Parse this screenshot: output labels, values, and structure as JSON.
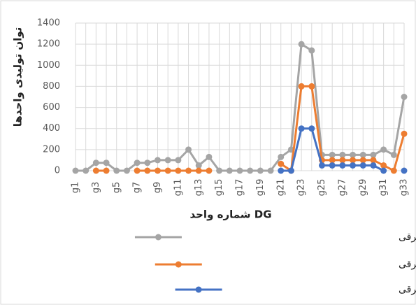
{
  "chart_data": {
    "type": "line",
    "x_label": "شماره واحد DG",
    "y_label": "توان تولیدی واحدها",
    "categories": [
      "g1",
      null,
      "g3",
      null,
      "g5",
      null,
      "g7",
      null,
      "g9",
      null,
      "g11",
      null,
      "g13",
      null,
      "g15",
      null,
      "g17",
      null,
      "g19",
      null,
      "g21",
      null,
      "g23",
      null,
      "g25",
      null,
      "g27",
      null,
      "g29",
      null,
      "g31",
      null,
      "g33"
    ],
    "ylim": [
      0,
      1400
    ],
    "yticks": [
      0,
      200,
      400,
      600,
      800,
      1000,
      1200,
      1400
    ],
    "grid": true,
    "series": [
      {
        "name": "عدم وجود پاسخ گویی تقاضا، عدم وجود خودرو برقی",
        "color": "#a5a5a5",
        "values": [
          0,
          0,
          75,
          75,
          0,
          0,
          75,
          75,
          100,
          100,
          100,
          200,
          50,
          130,
          0,
          0,
          0,
          0,
          0,
          0,
          130,
          200,
          1200,
          1140,
          150,
          150,
          150,
          150,
          150,
          150,
          200,
          150,
          700
        ]
      },
      {
        "name": "عدم وجود پاسخ گویی تقاضا، وجود خودرو برقی",
        "color": "#ed7d31",
        "values": [
          null,
          null,
          0,
          0,
          null,
          null,
          0,
          0,
          0,
          0,
          0,
          0,
          0,
          0,
          null,
          null,
          null,
          null,
          null,
          null,
          65,
          0,
          800,
          800,
          100,
          100,
          100,
          100,
          100,
          100,
          50,
          0,
          350
        ]
      },
      {
        "name": "وجود پاسخ گویی تقاضا، وجود خودرو برقی",
        "color": "#4472c4",
        "values": [
          null,
          null,
          null,
          null,
          null,
          null,
          null,
          null,
          null,
          null,
          null,
          null,
          null,
          null,
          null,
          null,
          null,
          null,
          null,
          null,
          0,
          0,
          400,
          400,
          50,
          50,
          50,
          50,
          50,
          50,
          0,
          null,
          0
        ]
      }
    ]
  }
}
